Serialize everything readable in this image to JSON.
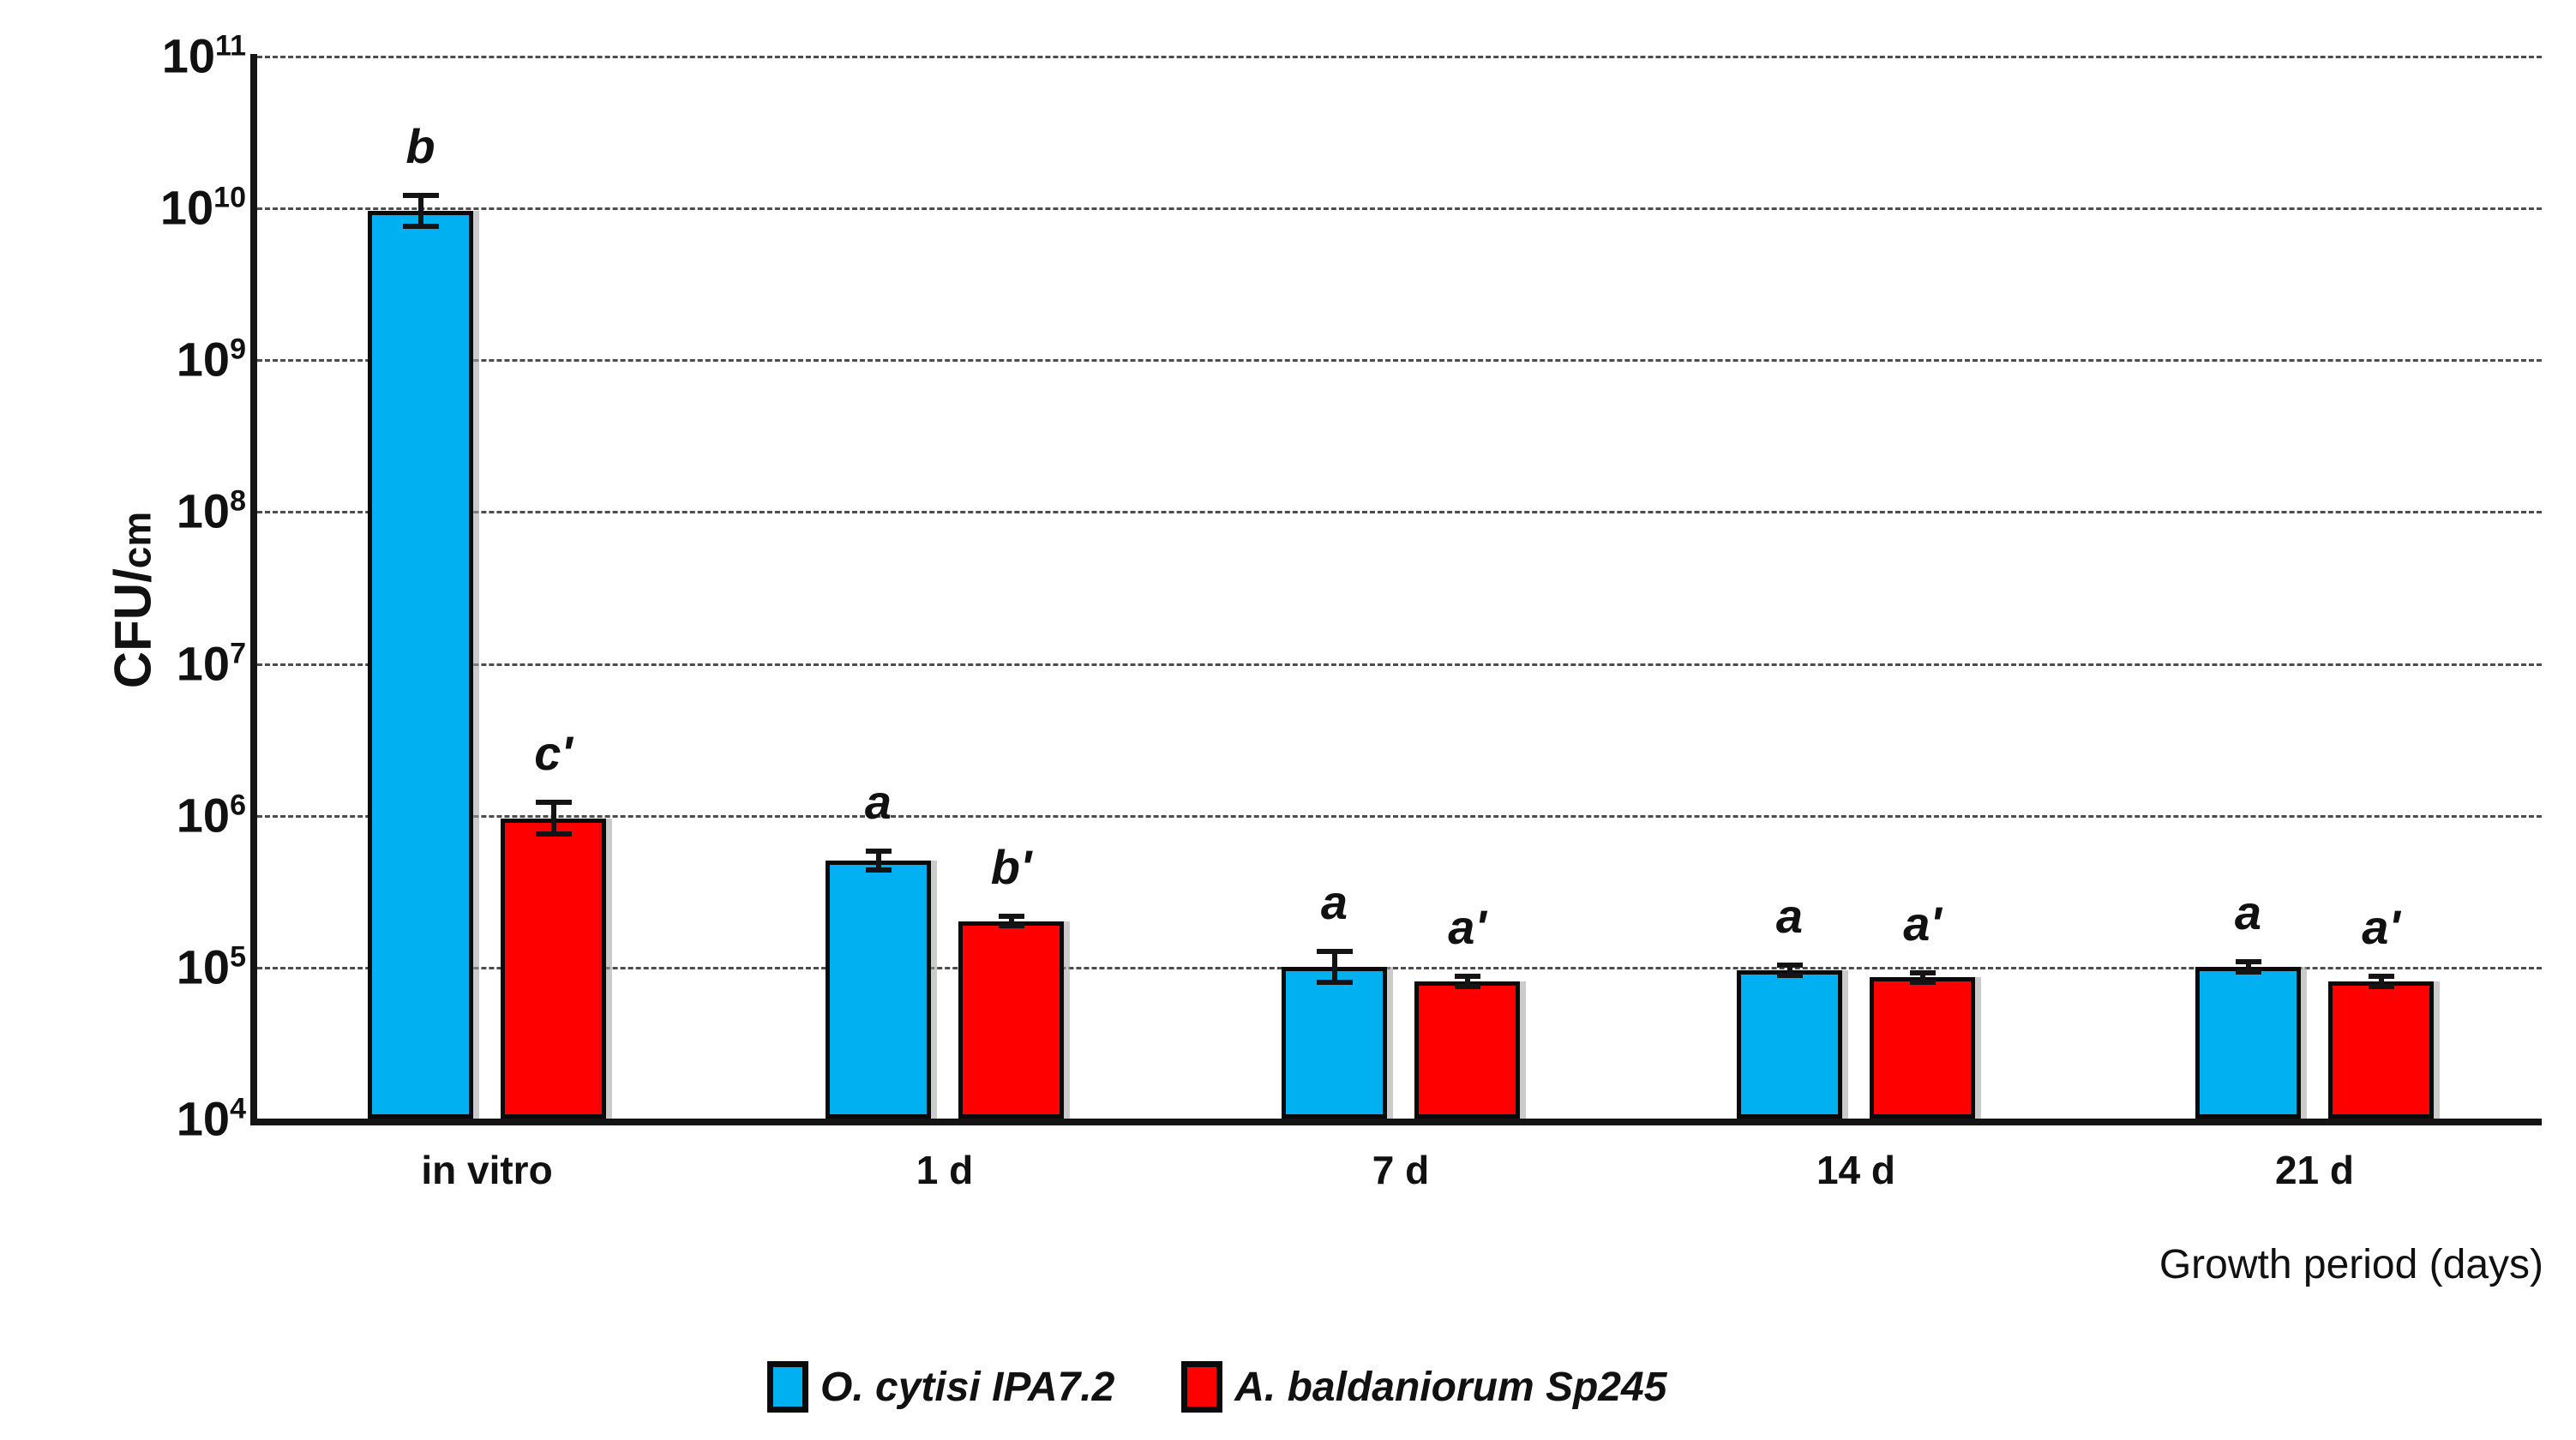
{
  "figure": {
    "y_axis_label_main": "CFU/",
    "y_axis_label_sub": "cm",
    "x_axis_label": "Growth period (days)"
  },
  "chart_data": {
    "type": "bar",
    "scale": "log10",
    "title": "",
    "xlabel": "Growth period (days)",
    "ylabel": "CFU/cm",
    "ylim": [
      10000,
      100000000000
    ],
    "y_tick_exponents": [
      11,
      10,
      9,
      8,
      7,
      6,
      5,
      4
    ],
    "grid": "horizontal-dashed",
    "legend_position": "bottom",
    "categories": [
      "in vitro",
      "1 d",
      "7 d",
      "14 d",
      "21 d"
    ],
    "series": [
      {
        "name": "O. cytisi IPA7.2",
        "color": "#00B0F0",
        "values": [
          9500000000.0,
          500000.0,
          100000.0,
          95000.0,
          100000.0
        ],
        "sig_labels": [
          "b",
          "a",
          "a",
          "a",
          "a"
        ],
        "err_log": [
          0.12,
          0.08,
          0.12,
          0.05,
          0.05
        ]
      },
      {
        "name": "A. baldaniorum Sp245",
        "color": "#FF0000",
        "values": [
          950000.0,
          200000.0,
          80000.0,
          85000.0,
          80000.0
        ],
        "sig_labels": [
          "c'",
          "b'",
          "a'",
          "a'",
          "a'"
        ],
        "err_log": [
          0.12,
          0.05,
          0.05,
          0.05,
          0.05
        ]
      }
    ]
  }
}
